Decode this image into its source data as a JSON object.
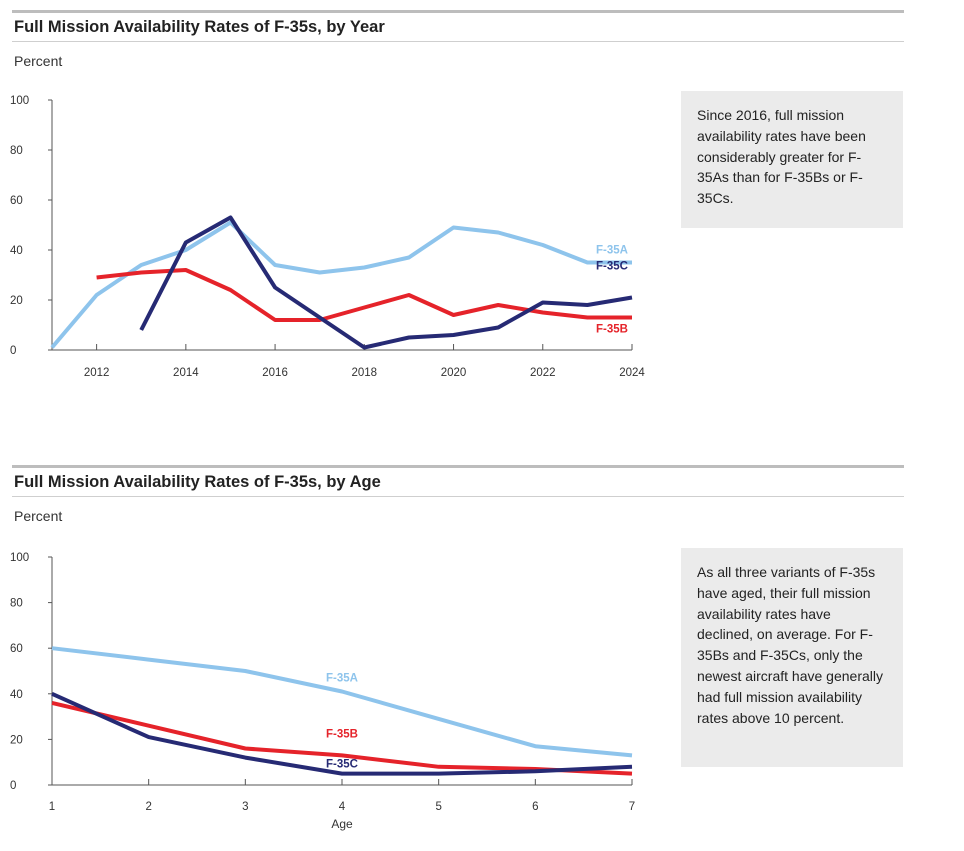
{
  "colors": {
    "F-35A": "#8ec4ec",
    "F-35B": "#e5232a",
    "F-35C": "#262a74",
    "axis": "#555555"
  },
  "chart_data": [
    {
      "type": "line",
      "title": "Full Mission Availability Rates of F-35s, by Year",
      "ylabel": "Percent",
      "xlabel": "",
      "xlim": [
        2011,
        2024
      ],
      "ylim": [
        0,
        100
      ],
      "xticks": [
        2012,
        2014,
        2016,
        2018,
        2020,
        2022,
        2024
      ],
      "yticks": [
        0,
        20,
        40,
        60,
        80,
        100
      ],
      "annotation": "Since 2016, full mission availability rates have been considerably greater for F-35As than for F-35Bs or F-35Cs.",
      "series": [
        {
          "name": "F-35A",
          "label": "F-35A",
          "x": [
            2011,
            2012,
            2013,
            2014,
            2015,
            2016,
            2017,
            2018,
            2019,
            2020,
            2021,
            2022,
            2023,
            2024
          ],
          "y": [
            1,
            22,
            34,
            40,
            51,
            34,
            31,
            33,
            37,
            49,
            47,
            42,
            35,
            35
          ]
        },
        {
          "name": "F-35B",
          "label": "F-35B",
          "x": [
            2012,
            2013,
            2014,
            2015,
            2016,
            2017,
            2018,
            2019,
            2020,
            2021,
            2022,
            2023,
            2024
          ],
          "y": [
            29,
            31,
            32,
            24,
            12,
            12,
            17,
            22,
            14,
            18,
            15,
            13,
            13
          ]
        },
        {
          "name": "F-35C",
          "label": "F-35C",
          "x": [
            2013,
            2014,
            2015,
            2016,
            2017,
            2018,
            2019,
            2020,
            2021,
            2022,
            2023,
            2024
          ],
          "y": [
            8,
            43,
            53,
            25,
            13,
            1,
            5,
            6,
            9,
            19,
            18,
            21
          ]
        }
      ]
    },
    {
      "type": "line",
      "title": "Full Mission Availability Rates of F-35s, by Age",
      "ylabel": "Percent",
      "xlabel": "Age",
      "xlim": [
        1,
        7
      ],
      "ylim": [
        0,
        100
      ],
      "xticks": [
        1,
        2,
        3,
        4,
        5,
        6,
        7
      ],
      "yticks": [
        0,
        20,
        40,
        60,
        80,
        100
      ],
      "annotation": "As all three variants of F-35s have aged, their full mission availability rates have declined, on average. For F-35Bs and F-35Cs, only the newest aircraft have generally had full mission availability rates above 10 percent.",
      "series": [
        {
          "name": "F-35A",
          "label": "F-35A",
          "x": [
            1,
            2,
            3,
            4,
            5,
            6,
            7
          ],
          "y": [
            60,
            55,
            50,
            41,
            29,
            17,
            13
          ]
        },
        {
          "name": "F-35B",
          "label": "F-35B",
          "x": [
            1,
            2,
            3,
            4,
            5,
            6,
            7
          ],
          "y": [
            36,
            26,
            16,
            13,
            8,
            7,
            5
          ]
        },
        {
          "name": "F-35C",
          "label": "F-35C",
          "x": [
            1,
            2,
            3,
            4,
            5,
            6,
            7
          ],
          "y": [
            40,
            21,
            12,
            5,
            5,
            6,
            8
          ]
        }
      ]
    }
  ]
}
